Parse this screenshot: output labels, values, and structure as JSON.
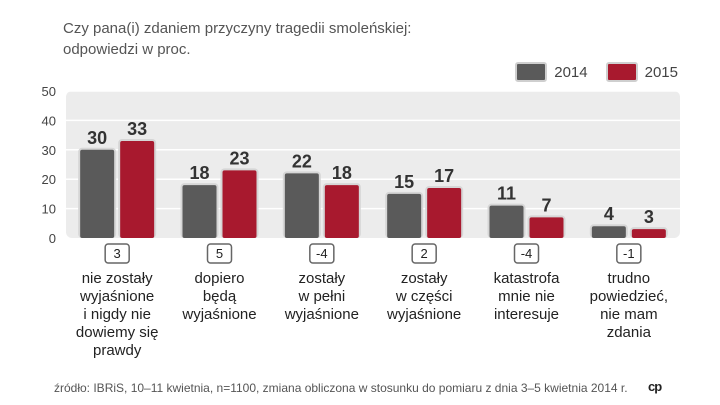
{
  "title_lines": [
    "Czy pana(i) zdaniem przyczyny tragedii smoleńskiej:",
    "odpowiedzi w proc."
  ],
  "source": "źródło: IBRiS, 10–11 kwietnia, n=1100, zmiana obliczona w stosunku do pomiaru z dnia 3–5 kwietnia 2014 r.",
  "logo": "cp",
  "colors": {
    "s2014": "#5a5a5a",
    "s2015": "#a8192e",
    "plot_bg": "#ececec",
    "change_border": "#666666"
  },
  "chart_data": {
    "type": "bar",
    "ylim": [
      0,
      50
    ],
    "yticks": [
      0,
      10,
      20,
      30,
      40,
      50
    ],
    "grid": true,
    "legend": "top-right",
    "series": [
      {
        "name": "2014",
        "values": [
          30,
          18,
          22,
          15,
          11,
          4
        ]
      },
      {
        "name": "2015",
        "values": [
          33,
          23,
          18,
          17,
          7,
          3
        ]
      }
    ],
    "changes": [
      "3",
      "5",
      "-4",
      "2",
      "-4",
      "-1"
    ],
    "categories": [
      [
        "nie zostały",
        "wyjaśnione",
        "i nigdy nie",
        "dowiemy się",
        "prawdy"
      ],
      [
        "dopiero",
        "będą",
        "wyjaśnione"
      ],
      [
        "zostały",
        "w pełni",
        "wyjaśnione"
      ],
      [
        "zostały",
        "w części",
        "wyjaśnione"
      ],
      [
        "katastrofa",
        "mnie nie",
        "interesuje"
      ],
      [
        "trudno",
        "powiedzieć,",
        "nie mam",
        "zdania"
      ]
    ]
  }
}
